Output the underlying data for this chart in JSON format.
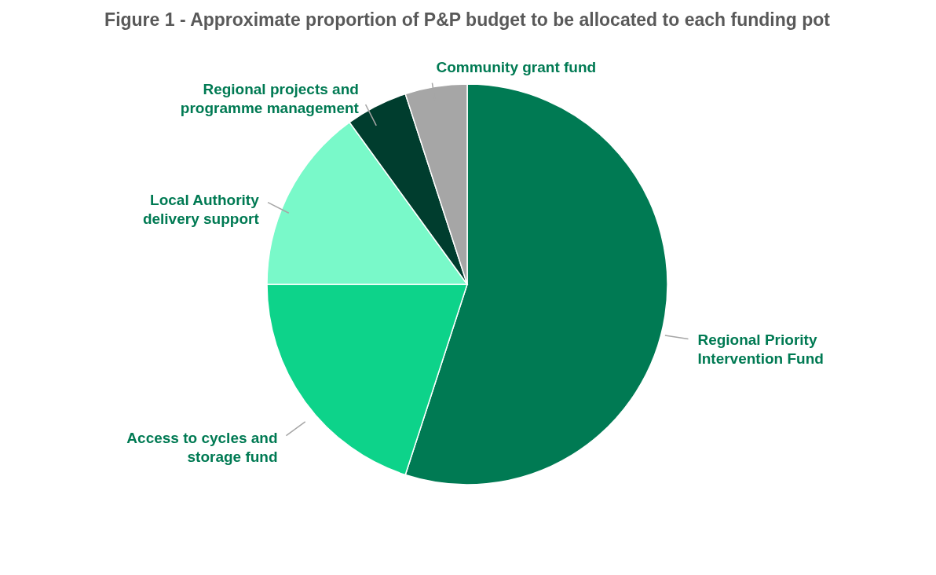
{
  "chart_data": {
    "type": "pie",
    "title": "Figure 1 - Approximate proportion of P&P budget to be allocated to each funding pot",
    "categories": [
      "Regional Priority Intervention Fund",
      "Access to cycles and storage fund",
      "Local Authority delivery support",
      "Regional projects and programme management",
      "Community grant fund"
    ],
    "values": [
      55,
      20,
      15,
      5,
      5
    ],
    "colors": [
      "#007a53",
      "#0dd38a",
      "#79f9c9",
      "#003d2e",
      "#a6a6a6"
    ]
  }
}
